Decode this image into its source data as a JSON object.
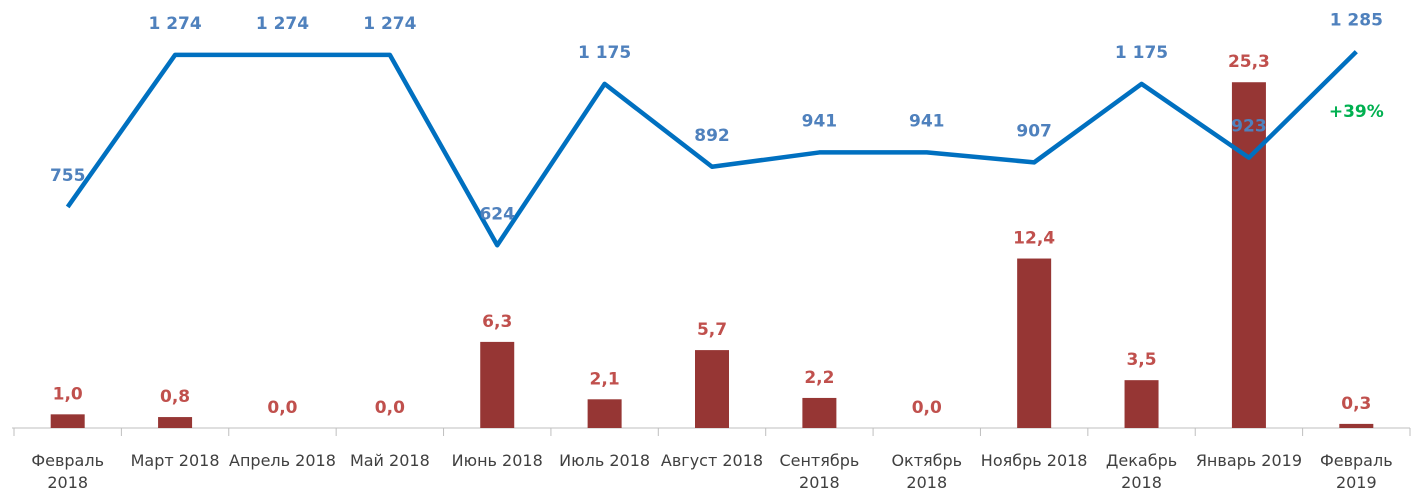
{
  "chart_data": {
    "type": "bar",
    "categories": [
      "Февраль 2018",
      "Март 2018",
      "Апрель 2018",
      "Май 2018",
      "Июнь 2018",
      "Июль 2018",
      "Август 2018",
      "Сентябрь 2018",
      "Октябрь 2018",
      "Ноябрь 2018",
      "Декабрь 2018",
      "Январь 2019",
      "Февраль 2019"
    ],
    "series": [
      {
        "type": "bar",
        "color": "#963634",
        "values": [
          1.0,
          0.8,
          0.0,
          0.0,
          6.3,
          2.1,
          5.7,
          2.2,
          0.0,
          12.4,
          3.5,
          25.3,
          0.3
        ],
        "value_labels": [
          "1,0",
          "0,8",
          "0,0",
          "0,0",
          "6,3",
          "2,1",
          "5,7",
          "2,2",
          "0,0",
          "12,4",
          "3,5",
          "25,3",
          "0,3"
        ]
      },
      {
        "type": "line",
        "axis": "y2",
        "color": "#0070c0",
        "values": [
          755,
          1274,
          1274,
          1274,
          624,
          1175,
          892,
          941,
          941,
          907,
          1175,
          923,
          1285
        ],
        "value_labels": [
          "755",
          "1 274",
          "1 274",
          "1 274",
          "624",
          "1 175",
          "892",
          "941",
          "941",
          "907",
          "1 175",
          "923",
          "1 285"
        ]
      }
    ],
    "ylim": [
      0,
      30
    ],
    "y2lim": [
      0,
      1400
    ],
    "annotation": "+39%",
    "annotation_color": "#00b050"
  }
}
